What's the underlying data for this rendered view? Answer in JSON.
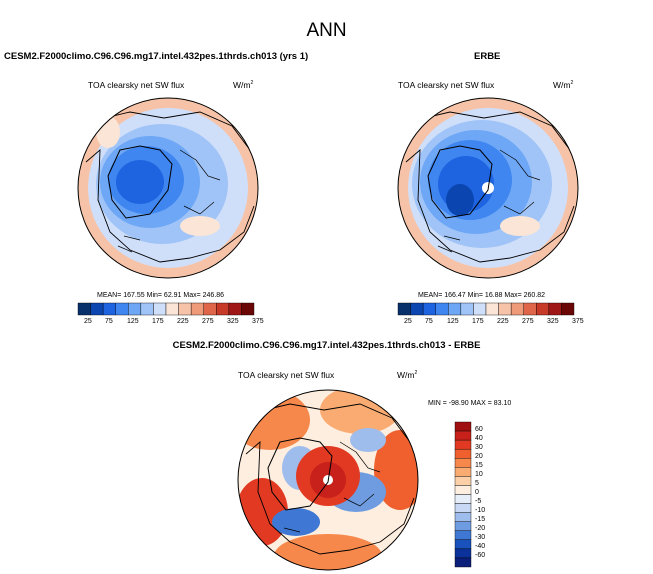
{
  "page_title": "ANN",
  "colors": {
    "seq": [
      "#08306b",
      "#0a45b0",
      "#1e63e0",
      "#3f86f0",
      "#6ea7f5",
      "#a0c4f7",
      "#cfdff9",
      "#fbe5d6",
      "#f6c3a8",
      "#ef9a78",
      "#e0664a",
      "#c83a28",
      "#a01717",
      "#6b0606"
    ],
    "diff": [
      "#a01010",
      "#c8201a",
      "#e23a22",
      "#f0602e",
      "#f6884c",
      "#f9ab72",
      "#fbd0a8",
      "#fdeedf",
      "#e6eefa",
      "#c9d9f5",
      "#9fbdec",
      "#6f9ce0",
      "#3f78d4",
      "#1a52bd",
      "#0a329a",
      "#0a1f7a"
    ]
  },
  "panels": [
    {
      "case_title": "CESM2.F2000climo.C96.C96.mg17.intel.432pes.1thrds.ch013 (yrs 1)",
      "variable": "TOA clearsky net SW flux",
      "units": "W/m",
      "units_exp": "2",
      "stats": "MEAN= 167.55  Min=  62.91  Max= 246.86"
    },
    {
      "case_title": "ERBE",
      "variable": "TOA clearsky net SW flux",
      "units": "W/m",
      "units_exp": "2",
      "stats": "MEAN= 166.47  Min=  16.88  Max= 260.82"
    },
    {
      "case_title": "CESM2.F2000climo.C96.C96.mg17.intel.432pes.1thrds.ch013 - ERBE",
      "variable": "TOA clearsky net SW flux",
      "units": "W/m",
      "units_exp": "2",
      "stats": "MIN = -98.90  MAX =  83.10"
    }
  ],
  "seq_colorbar_labels": [
    "25",
    "75",
    "125",
    "175",
    "225",
    "275",
    "325",
    "375"
  ],
  "diff_colorbar_labels": [
    "60",
    "40",
    "30",
    "20",
    "15",
    "10",
    "5",
    "0",
    "-5",
    "-10",
    "-15",
    "-20",
    "-30",
    "-40",
    "-60"
  ]
}
